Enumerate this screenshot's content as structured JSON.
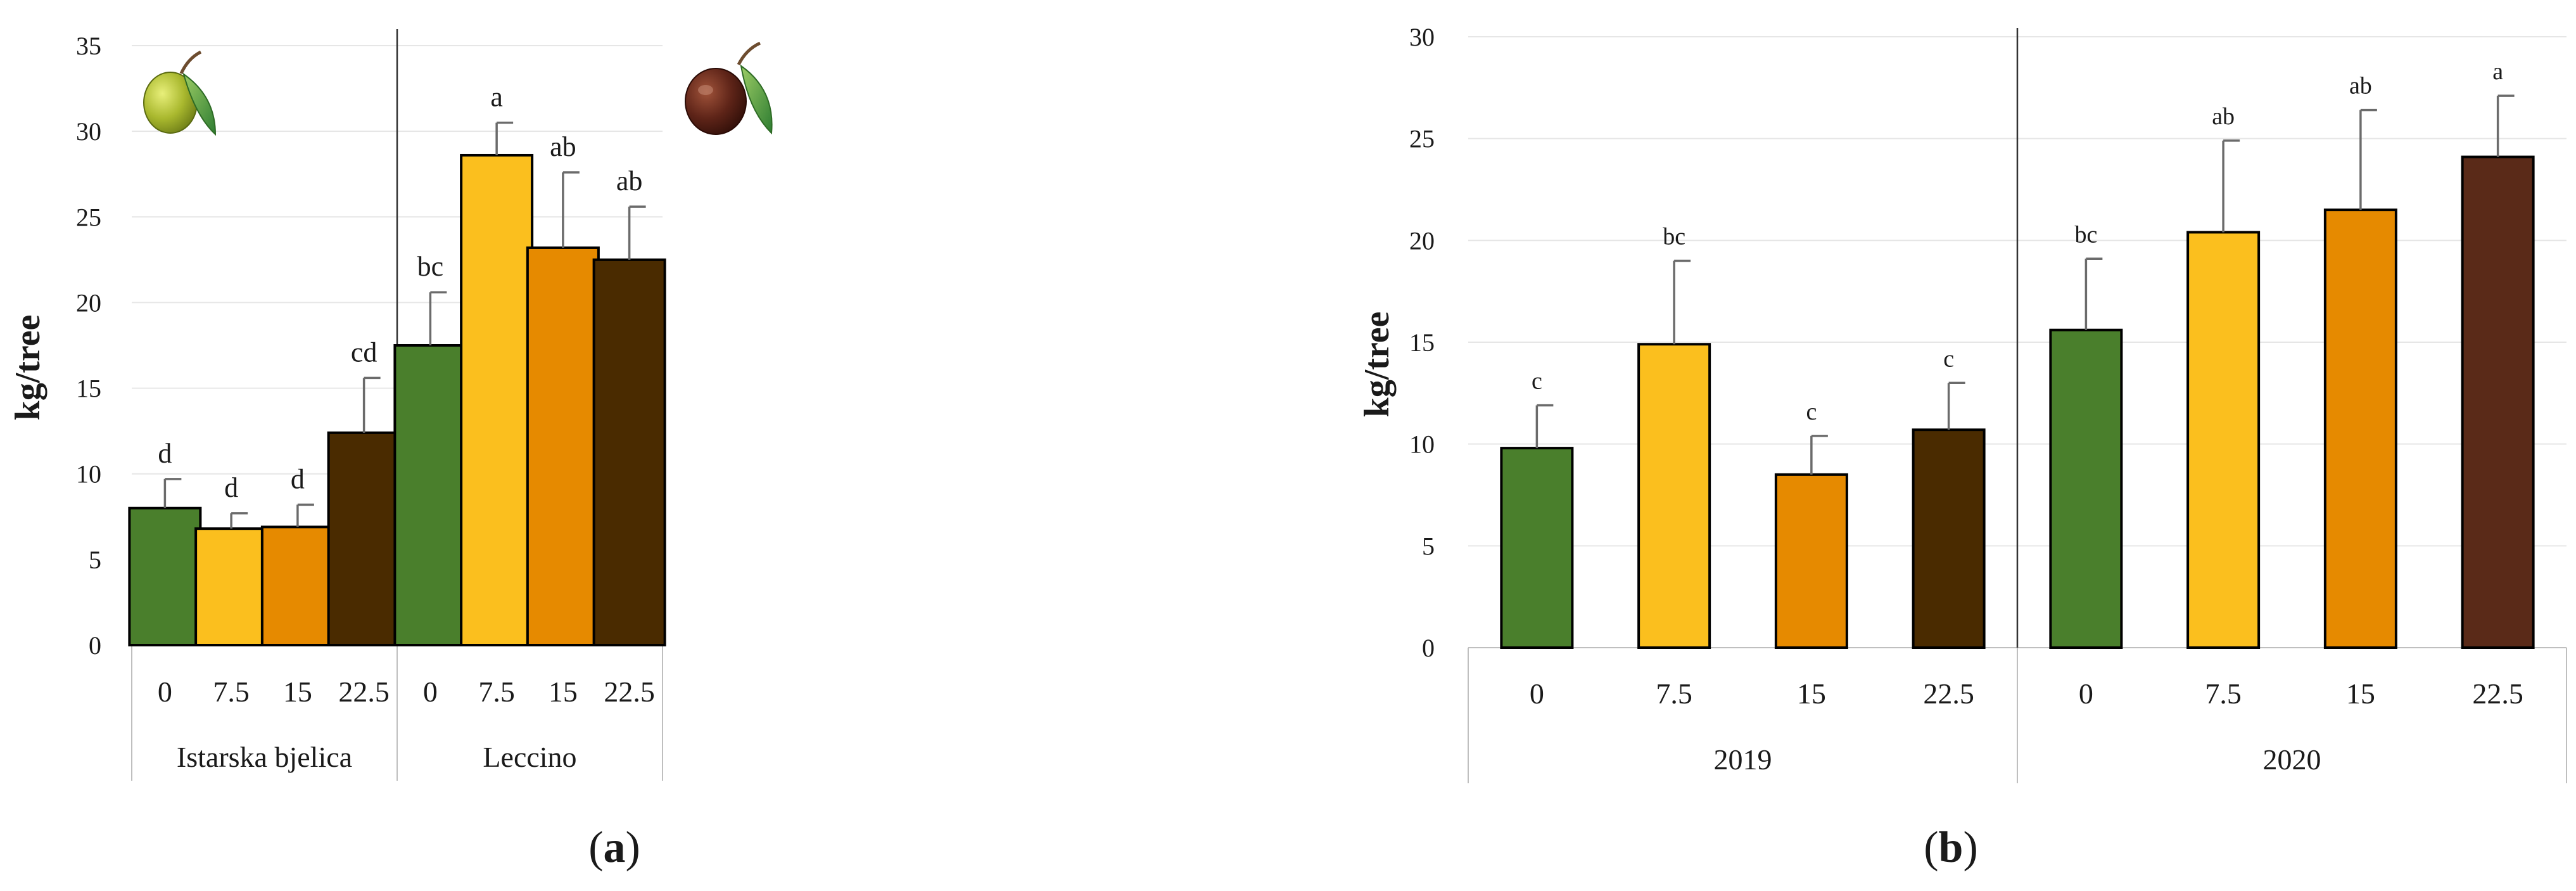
{
  "chart_data": [
    {
      "type": "bar",
      "panel": "a",
      "ylabel": "kg/tree",
      "ylim": [
        0,
        35
      ],
      "yticks": [
        0,
        5,
        10,
        15,
        20,
        25,
        30,
        35
      ],
      "categories": [
        "0",
        "7.5",
        "15",
        "22.5"
      ],
      "groups": [
        {
          "name": "Istarska bjelica",
          "icon": "green-olive-icon",
          "values": [
            8.0,
            6.8,
            6.9,
            12.4
          ],
          "errors": [
            1.7,
            0.9,
            1.3,
            3.2
          ],
          "letters": [
            "d",
            "d",
            "d",
            "cd"
          ]
        },
        {
          "name": "Leccino",
          "icon": "black-olive-icon",
          "values": [
            17.5,
            28.6,
            23.2,
            22.5
          ],
          "errors": [
            3.1,
            1.9,
            4.4,
            3.1
          ],
          "letters": [
            "bc",
            "a",
            "ab",
            "ab"
          ]
        }
      ],
      "colors": [
        "#4a7f2c",
        "#fbbf1e",
        "#e68a00",
        "#4a2b00"
      ]
    },
    {
      "type": "bar",
      "panel": "b",
      "ylabel": "kg/tree",
      "ylim": [
        0,
        30
      ],
      "yticks": [
        0,
        5,
        10,
        15,
        20,
        25,
        30
      ],
      "categories": [
        "0",
        "7.5",
        "15",
        "22.5"
      ],
      "groups": [
        {
          "name": "2019",
          "values": [
            9.8,
            14.9,
            8.5,
            10.7
          ],
          "errors": [
            2.1,
            4.1,
            1.9,
            2.3
          ],
          "letters": [
            "c",
            "bc",
            "c",
            "c"
          ]
        },
        {
          "name": "2020",
          "values": [
            15.6,
            20.4,
            21.5,
            24.1
          ],
          "errors": [
            3.5,
            4.5,
            4.9,
            3.0
          ],
          "letters": [
            "bc",
            "ab",
            "ab",
            "a"
          ]
        }
      ],
      "colors": [
        "#4a7f2c",
        "#fbbf1e",
        "#e68a00",
        "#4a2b00",
        "#5a2a18"
      ]
    }
  ],
  "captions": {
    "a": {
      "open": "(",
      "letter": "a",
      "close": ")"
    },
    "b": {
      "open": "(",
      "letter": "b",
      "close": ")"
    }
  }
}
